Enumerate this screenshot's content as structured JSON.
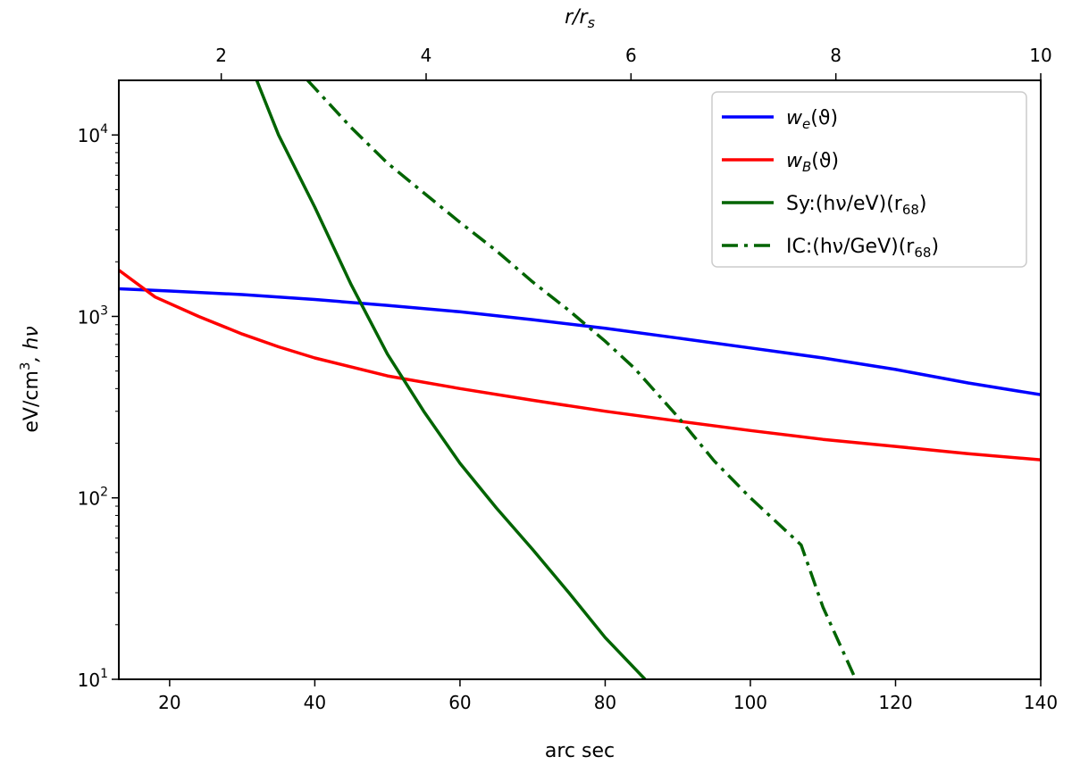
{
  "chart_data": {
    "type": "line",
    "xlabel": "arc sec",
    "top_xlabel": "r/r",
    "top_xlabel_sub": "s",
    "ylabel": "eV/cm",
    "ylabel_sup": "3",
    "ylabel_suffix": ", hν",
    "xlim": [
      13,
      140
    ],
    "ylim": [
      10,
      20000
    ],
    "yscale": "log",
    "top_xlim": [
      1.0,
      10.0
    ],
    "x_ticks": [
      20,
      40,
      60,
      80,
      100,
      120,
      140
    ],
    "x_tick_labels": [
      "20",
      "40",
      "60",
      "80",
      "100",
      "120",
      "140"
    ],
    "top_x_ticks": [
      2,
      4,
      6,
      8,
      10
    ],
    "top_x_tick_labels": [
      "2",
      "4",
      "6",
      "8",
      "10"
    ],
    "y_ticks": [
      10,
      100,
      1000,
      10000
    ],
    "y_tick_bases": [
      "10",
      "10",
      "10",
      "10"
    ],
    "y_tick_exps": [
      "1",
      "2",
      "3",
      "4"
    ],
    "legend_position": "top-right",
    "series": [
      {
        "name": "w_e(ϑ)",
        "legend_main": "w",
        "legend_sub": "e",
        "legend_rest": "(ϑ)",
        "color": "#0000ff",
        "style": "solid",
        "x": [
          13,
          20,
          30,
          40,
          50,
          60,
          70,
          80,
          90,
          100,
          110,
          120,
          130,
          140
        ],
        "y": [
          1420,
          1380,
          1320,
          1240,
          1150,
          1060,
          960,
          860,
          760,
          670,
          590,
          510,
          430,
          370
        ]
      },
      {
        "name": "w_B(ϑ)",
        "legend_main": "w",
        "legend_sub": "B",
        "legend_rest": "(ϑ)",
        "color": "#ff0000",
        "style": "solid",
        "x": [
          13,
          18,
          24,
          30,
          35,
          40,
          50,
          60,
          70,
          80,
          90,
          100,
          110,
          120,
          130,
          140
        ],
        "y": [
          1800,
          1280,
          1000,
          800,
          680,
          590,
          470,
          400,
          345,
          300,
          265,
          235,
          210,
          192,
          175,
          162
        ]
      },
      {
        "name": "Sy:(hν/eV)(r68)",
        "legend_main": "Sy:(hν/eV)(r",
        "legend_sub": "68",
        "legend_rest": ")",
        "color": "#006400",
        "style": "solid",
        "x": [
          32,
          35,
          40,
          45,
          50,
          55,
          60,
          65,
          70,
          75,
          80,
          85.5
        ],
        "y": [
          20000,
          10000,
          4000,
          1500,
          620,
          300,
          155,
          88,
          52,
          30,
          17,
          10
        ]
      },
      {
        "name": "IC:(hν/GeV)(r68)",
        "legend_main": "IC:(hν/GeV)(r",
        "legend_sub": "68",
        "legend_rest": ")",
        "color": "#006400",
        "style": "dashdot",
        "x": [
          39,
          45,
          50,
          55,
          60,
          65,
          70,
          75,
          80,
          84,
          90,
          95,
          100,
          107,
          110,
          114.5
        ],
        "y": [
          20000,
          11000,
          7000,
          4800,
          3300,
          2300,
          1550,
          1080,
          730,
          520,
          280,
          160,
          100,
          55,
          25,
          10
        ]
      }
    ]
  }
}
